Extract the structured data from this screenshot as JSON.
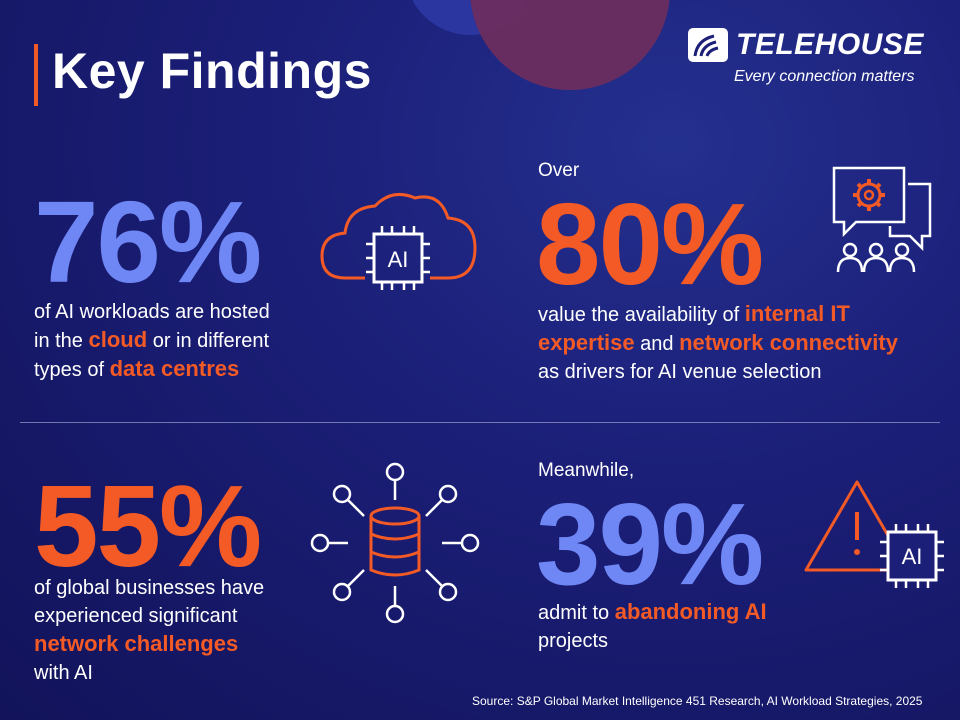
{
  "title": "Key Findings",
  "logo": {
    "name": "TELEHOUSE",
    "tagline": "Every connection matters"
  },
  "colors": {
    "accent": "#f35a25",
    "stat_blue": "#6f86f5",
    "background": "#1b1f78"
  },
  "findings": [
    {
      "prefix": "",
      "percent": "76%",
      "color": "blue",
      "icon": "cloud-ai-chip-icon",
      "icon_text": "AI",
      "line1_pre": "of AI workloads are hosted",
      "line2_pre": "in the ",
      "line2_hl": "cloud",
      "line2_post": " or in different",
      "line3_pre": "types of ",
      "line3_hl": "data centres"
    },
    {
      "prefix": "Over",
      "percent": "80%",
      "color": "orange",
      "icon": "team-discussion-gear-icon",
      "line1_pre": "value the availability of ",
      "line1_hl": "internal IT",
      "line2_hl1": "expertise",
      "line2_mid": " and ",
      "line2_hl2": "network connectivity",
      "line3_pre": "as drivers for AI venue selection"
    },
    {
      "prefix": "",
      "percent": "55%",
      "color": "orange",
      "icon": "database-network-icon",
      "line1_pre": "of global businesses have",
      "line2_pre": "experienced significant",
      "line3_hl": "network challenges",
      "line4_pre": "with AI"
    },
    {
      "prefix": "Meanwhile,",
      "percent": "39%",
      "color": "blue",
      "icon": "warning-ai-chip-icon",
      "icon_text": "AI",
      "line1_pre": "admit to ",
      "line1_hl": "abandoning AI",
      "line2_pre": "projects"
    }
  ],
  "source": "Source: S&P Global Market Intelligence 451 Research, AI Workload Strategies, 2025"
}
